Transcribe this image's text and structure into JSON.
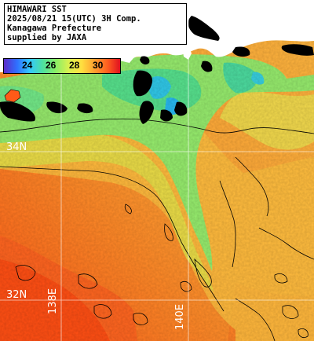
{
  "title": {
    "line1": "HIMAWARI SST",
    "line2": "2025/08/21 15(UTC) 3H Comp.",
    "line3": "Kanagawa Prefecture",
    "line4": "supplied by JAXA"
  },
  "colorbar": {
    "ticks": [
      "24",
      "26",
      "28",
      "30"
    ],
    "colors": [
      "#5a2cc8",
      "#2f6fff",
      "#33c8ff",
      "#4de0a0",
      "#88ee66",
      "#d8f050",
      "#ffe040",
      "#ffa030",
      "#ff6020",
      "#e01020"
    ]
  },
  "grid": {
    "lat_labels": [
      "34N",
      "32N"
    ],
    "lon_labels": [
      "138E",
      "140E"
    ]
  },
  "colors": {
    "warm": "#ff9a30",
    "hot": "#ff5a18",
    "mid": "#f8d040",
    "cool": "#90ee70",
    "cold": "#40d8a0",
    "land": "#ffffff",
    "cloud": "#000000",
    "gridline": "#ffffff"
  }
}
